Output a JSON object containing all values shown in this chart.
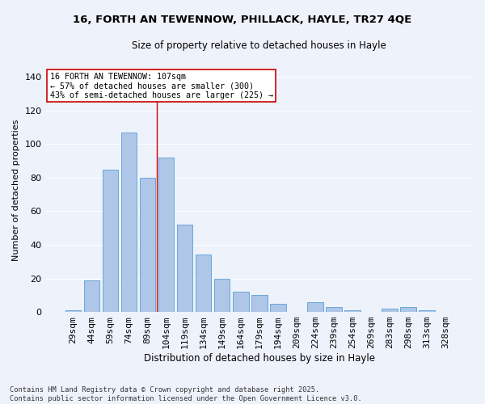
{
  "title_line1": "16, FORTH AN TEWENNOW, PHILLACK, HAYLE, TR27 4QE",
  "title_line2": "Size of property relative to detached houses in Hayle",
  "xlabel": "Distribution of detached houses by size in Hayle",
  "ylabel": "Number of detached properties",
  "bar_labels": [
    "29sqm",
    "44sqm",
    "59sqm",
    "74sqm",
    "89sqm",
    "104sqm",
    "119sqm",
    "134sqm",
    "149sqm",
    "164sqm",
    "179sqm",
    "194sqm",
    "209sqm",
    "224sqm",
    "239sqm",
    "254sqm",
    "269sqm",
    "283sqm",
    "298sqm",
    "313sqm",
    "328sqm"
  ],
  "bar_values": [
    1,
    19,
    85,
    107,
    80,
    92,
    52,
    34,
    20,
    12,
    10,
    5,
    0,
    6,
    3,
    1,
    0,
    2,
    3,
    1,
    0
  ],
  "bar_color": "#aec6e8",
  "bar_edge_color": "#5a9fd4",
  "background_color": "#eef2fb",
  "grid_color": "#ffffff",
  "vline_x_index": 4.5,
  "vline_color": "#cc0000",
  "annotation_text": "16 FORTH AN TEWENNOW: 107sqm\n← 57% of detached houses are smaller (300)\n43% of semi-detached houses are larger (225) →",
  "annotation_box_facecolor": "#ffffff",
  "annotation_box_edgecolor": "#cc0000",
  "ylim": [
    0,
    145
  ],
  "yticks": [
    0,
    20,
    40,
    60,
    80,
    100,
    120,
    140
  ],
  "footnote": "Contains HM Land Registry data © Crown copyright and database right 2025.\nContains public sector information licensed under the Open Government Licence v3.0."
}
